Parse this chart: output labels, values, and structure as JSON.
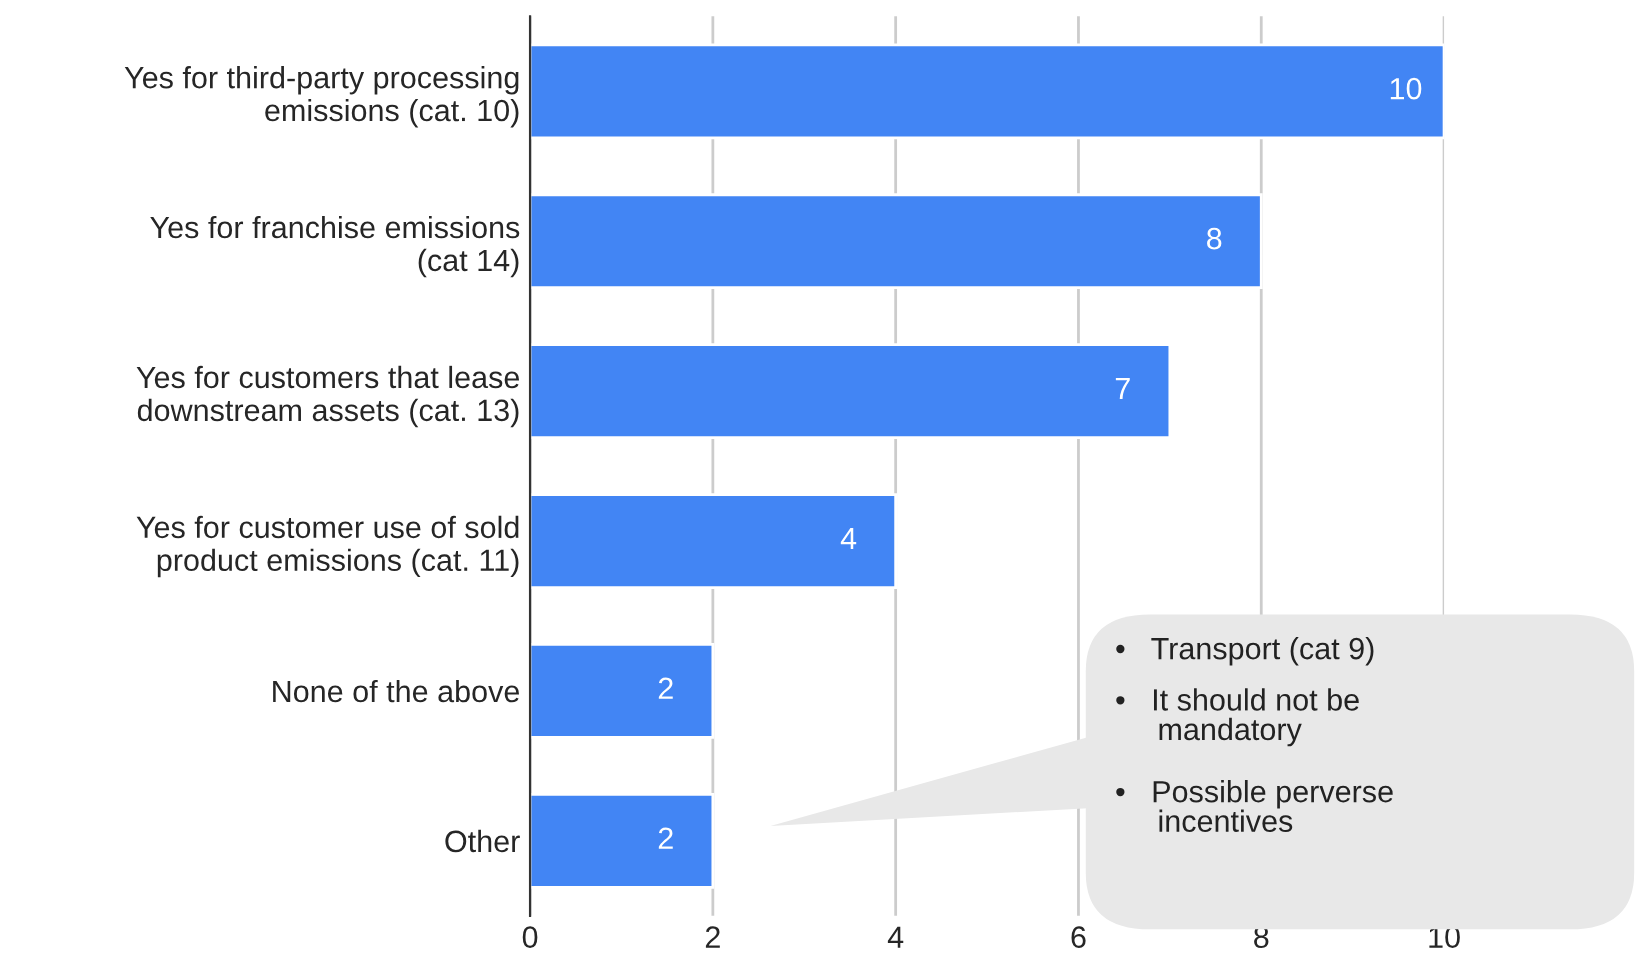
{
  "chart_data": {
    "type": "bar",
    "orientation": "horizontal",
    "categories": [
      "Yes for third-party processing\nemissions (cat. 10)",
      "Yes for franchise emissions\n(cat 14)",
      "Yes for customers that lease\ndownstream assets (cat. 13)",
      "Yes for customer use of sold\nproduct emissions (cat. 11)",
      "None of the above",
      "Other"
    ],
    "values": [
      10,
      8,
      7,
      4,
      2,
      2
    ],
    "color": "#4285f4",
    "data_labels": true,
    "xlim": [
      0,
      10
    ],
    "xticks": [
      0,
      2,
      4,
      6,
      8,
      10
    ],
    "grid": "x",
    "legend": false,
    "annotations": [
      "•   Transport (cat 9)",
      "•   It should not be\n     mandatory",
      "•   Possible perverse\n     incentives"
    ]
  }
}
